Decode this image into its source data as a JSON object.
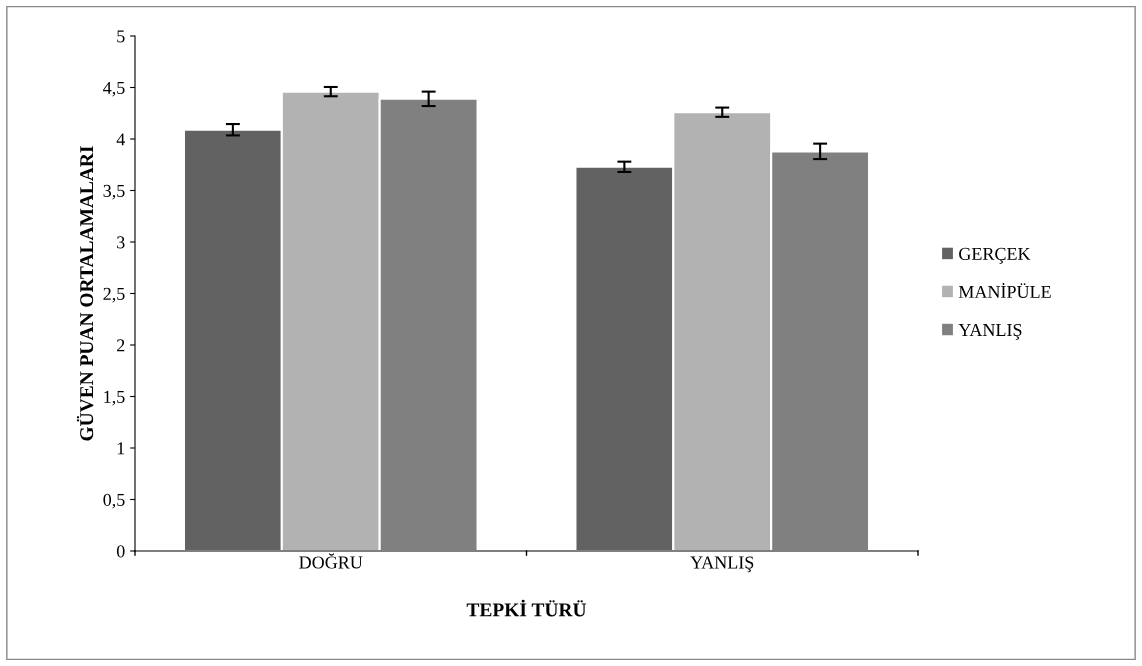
{
  "chart_data": {
    "type": "bar",
    "xlabel": "TEPKİ TÜRÜ",
    "ylabel": "GÜVEN PUAN ORTALAMALARI",
    "categories": [
      "DOĞRU",
      "YANLIŞ"
    ],
    "series": [
      {
        "name": "GERÇEK",
        "color": "#626262",
        "values": [
          4.09,
          3.73
        ],
        "errors": [
          0.055,
          0.05
        ]
      },
      {
        "name": "MANİPÜLE",
        "color": "#b2b2b2",
        "values": [
          4.46,
          4.26
        ],
        "errors": [
          0.045,
          0.045
        ]
      },
      {
        "name": "YANLIŞ",
        "color": "#808080",
        "values": [
          4.39,
          3.88
        ],
        "errors": [
          0.07,
          0.075
        ]
      }
    ],
    "ylim": [
      0,
      5
    ],
    "yticks": [
      0,
      {
        "value": 0.5,
        "label": "0,5"
      },
      1,
      {
        "value": 1.5,
        "label": "1,5"
      },
      2,
      {
        "value": 2.5,
        "label": "2,5"
      },
      3,
      {
        "value": 3.5,
        "label": "3,5"
      },
      4,
      {
        "value": 4.5,
        "label": "4,5"
      },
      5
    ],
    "grid": false,
    "legend": "right"
  }
}
